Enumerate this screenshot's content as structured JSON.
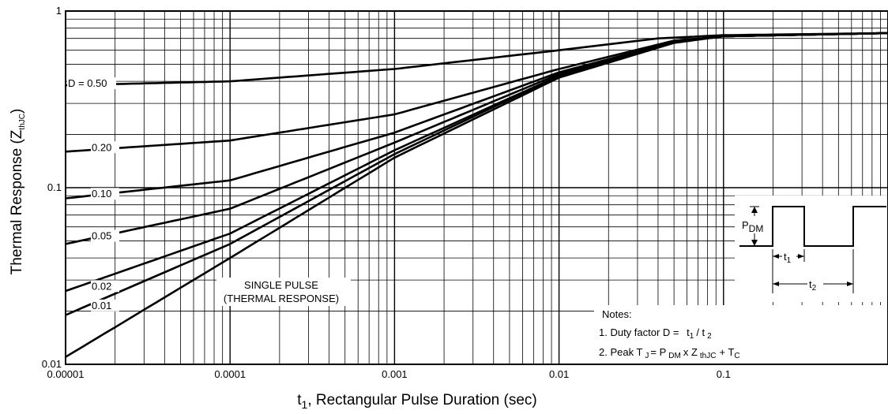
{
  "chart_data": {
    "type": "line",
    "title": "",
    "xlabel": {
      "main": "t",
      "sub": "1",
      "rest": ", Rectangular Pulse Duration (sec)"
    },
    "ylabel": {
      "main": "Thermal Response (Z",
      "sub": "thJC",
      "rest": ")"
    },
    "x_scale": "log",
    "y_scale": "log",
    "xlim": [
      1e-05,
      1
    ],
    "ylim": [
      0.01,
      1
    ],
    "grid": true,
    "x_ticks": [
      "0.00001",
      "0.0001",
      "0.001",
      "0.01",
      "0.1"
    ],
    "y_ticks": [
      "1",
      "0.1",
      "0.01"
    ],
    "series": [
      {
        "name": "D = 0.50",
        "label_y": 0.38,
        "points": [
          [
            1e-05,
            0.38
          ],
          [
            0.0001,
            0.4
          ],
          [
            0.001,
            0.47
          ],
          [
            0.01,
            0.6
          ],
          [
            0.04,
            0.7
          ],
          [
            0.1,
            0.73
          ],
          [
            1,
            0.75
          ]
        ]
      },
      {
        "name": "0.20",
        "label_y": 0.165,
        "points": [
          [
            1e-05,
            0.16
          ],
          [
            0.0001,
            0.185
          ],
          [
            0.001,
            0.26
          ],
          [
            0.01,
            0.47
          ],
          [
            0.05,
            0.68
          ],
          [
            0.1,
            0.72
          ],
          [
            1,
            0.75
          ]
        ]
      },
      {
        "name": "0.10",
        "label_y": 0.09,
        "points": [
          [
            1e-05,
            0.087
          ],
          [
            0.0001,
            0.11
          ],
          [
            0.001,
            0.205
          ],
          [
            0.01,
            0.45
          ],
          [
            0.05,
            0.67
          ],
          [
            0.1,
            0.72
          ],
          [
            1,
            0.75
          ]
        ]
      },
      {
        "name": "0.05",
        "label_y": 0.052,
        "points": [
          [
            1e-05,
            0.048
          ],
          [
            0.0001,
            0.076
          ],
          [
            0.001,
            0.18
          ],
          [
            0.01,
            0.44
          ],
          [
            0.05,
            0.67
          ],
          [
            0.1,
            0.72
          ],
          [
            1,
            0.75
          ]
        ]
      },
      {
        "name": "0.02",
        "label_y": 0.027,
        "points": [
          [
            1e-05,
            0.026
          ],
          [
            0.0001,
            0.055
          ],
          [
            0.001,
            0.163
          ],
          [
            0.01,
            0.43
          ],
          [
            0.05,
            0.665
          ],
          [
            0.1,
            0.72
          ],
          [
            1,
            0.75
          ]
        ]
      },
      {
        "name": "0.01",
        "label_y": 0.021,
        "points": [
          [
            1e-05,
            0.019
          ],
          [
            0.0001,
            0.048
          ],
          [
            0.001,
            0.155
          ],
          [
            0.01,
            0.43
          ],
          [
            0.05,
            0.665
          ],
          [
            0.1,
            0.72
          ],
          [
            1,
            0.75
          ]
        ]
      },
      {
        "name": "SINGLE PULSE",
        "label_y": null,
        "points": [
          [
            1e-05,
            0.011
          ],
          [
            0.0001,
            0.04
          ],
          [
            0.001,
            0.148
          ],
          [
            0.01,
            0.42
          ],
          [
            0.05,
            0.66
          ],
          [
            0.1,
            0.72
          ],
          [
            1,
            0.75
          ]
        ]
      }
    ],
    "annotations": {
      "single_pulse_line1": "SINGLE PULSE",
      "single_pulse_line2": "(THERMAL RESPONSE)",
      "notes_title": "Notes:",
      "note1_text": "1. Duty factor D =",
      "note1_t1": "t",
      "note1_t1_sub": "1",
      "note1_slash": "/ t",
      "note1_t2_sub": "2",
      "note2_a": "2. Peak T",
      "note2_a_sub": "J",
      "note2_b": "= P",
      "note2_b_sub": "DM",
      "note2_c": "x Z",
      "note2_c_sub": "thJC",
      "note2_d": "+ T",
      "note2_d_sub": "C",
      "pdm": "P",
      "pdm_sub": "DM",
      "t1": "t",
      "t1_sub": "1",
      "t2": "t",
      "t2_sub": "2"
    }
  }
}
